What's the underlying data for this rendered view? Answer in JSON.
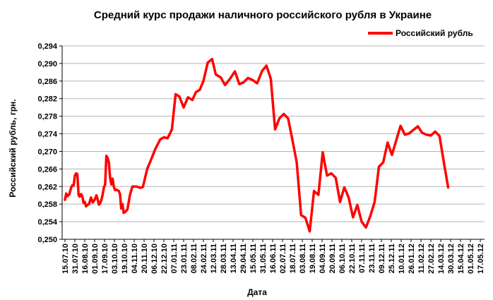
{
  "chart_data": {
    "type": "line",
    "title": "Средний курс продажи наличного российского рубля в Украине",
    "xlabel": "Дата",
    "ylabel": "Российский рубль, грн.",
    "ylim": [
      0.25,
      0.294
    ],
    "yticks": [
      "0,250",
      "0,254",
      "0,258",
      "0,262",
      "0,266",
      "0,270",
      "0,274",
      "0,278",
      "0,282",
      "0,286",
      "0,290",
      "0,294"
    ],
    "grid": "horizontal",
    "legend": "top-right",
    "x_tick_labels": [
      "15.07.10",
      "31.07.10",
      "16.08.10",
      "01.09.10",
      "17.09.10",
      "03.10.10",
      "19.10.10",
      "04.11.10",
      "20.11.10",
      "06.12.10",
      "22.12.10",
      "07.01.11",
      "23.01.11",
      "08.02.11",
      "24.02.11",
      "12.03.11",
      "28.03.11",
      "13.04.11",
      "29.04.11",
      "15.05.11",
      "31.05.11",
      "16.06.11",
      "02.07.11",
      "18.07.11",
      "03.08.11",
      "19.08.11",
      "04.09.11",
      "20.09.11",
      "06.10.11",
      "22.10.11",
      "07.11.11",
      "23.11.11",
      "09.12.11",
      "25.12.11",
      "10.01.12",
      "26.01.12",
      "11.02.12",
      "27.02.12",
      "14.03.12",
      "30.03.12",
      "15.04.12",
      "01.05.12",
      "17.05.12"
    ],
    "colors": {
      "series": "#ff0000",
      "grid": "#b3b3b3",
      "axis": "#000000"
    },
    "series": [
      {
        "name": "Российский рубль",
        "points": [
          [
            "15.07.10",
            0.259
          ],
          [
            "17.07.10",
            0.2604
          ],
          [
            "19.07.10",
            0.2598
          ],
          [
            "22.07.10",
            0.2602
          ],
          [
            "25.07.10",
            0.2618
          ],
          [
            "27.07.10",
            0.2623
          ],
          [
            "29.07.10",
            0.2622
          ],
          [
            "31.07.10",
            0.2645
          ],
          [
            "02.08.10",
            0.265
          ],
          [
            "04.08.10",
            0.2648
          ],
          [
            "06.08.10",
            0.26
          ],
          [
            "08.08.10",
            0.2597
          ],
          [
            "10.08.10",
            0.2603
          ],
          [
            "12.08.10",
            0.2598
          ],
          [
            "14.08.10",
            0.2583
          ],
          [
            "16.08.10",
            0.2585
          ],
          [
            "18.08.10",
            0.2575
          ],
          [
            "20.08.10",
            0.2578
          ],
          [
            "23.08.10",
            0.258
          ],
          [
            "26.08.10",
            0.2595
          ],
          [
            "29.08.10",
            0.2584
          ],
          [
            "01.09.10",
            0.259
          ],
          [
            "04.09.10",
            0.26
          ],
          [
            "06.09.10",
            0.259
          ],
          [
            "08.09.10",
            0.2579
          ],
          [
            "10.09.10",
            0.2582
          ],
          [
            "12.09.10",
            0.259
          ],
          [
            "14.09.10",
            0.2602
          ],
          [
            "16.09.10",
            0.2618
          ],
          [
            "18.09.10",
            0.2625
          ],
          [
            "20.09.10",
            0.269
          ],
          [
            "22.09.10",
            0.2685
          ],
          [
            "24.09.10",
            0.2675
          ],
          [
            "26.09.10",
            0.264
          ],
          [
            "28.09.10",
            0.2625
          ],
          [
            "30.09.10",
            0.2638
          ],
          [
            "02.10.10",
            0.262
          ],
          [
            "04.10.10",
            0.2612
          ],
          [
            "06.10.10",
            0.2613
          ],
          [
            "10.10.10",
            0.261
          ],
          [
            "12.10.10",
            0.2603
          ],
          [
            "14.10.10",
            0.257
          ],
          [
            "16.10.10",
            0.258
          ],
          [
            "18.10.10",
            0.256
          ],
          [
            "21.10.10",
            0.2563
          ],
          [
            "24.10.10",
            0.2568
          ],
          [
            "28.10.10",
            0.26
          ],
          [
            "01.11.10",
            0.262
          ],
          [
            "08.11.10",
            0.262
          ],
          [
            "14.11.10",
            0.2617
          ],
          [
            "18.11.10",
            0.2619
          ],
          [
            "25.11.10",
            0.266
          ],
          [
            "01.12.10",
            0.268
          ],
          [
            "08.12.10",
            0.2705
          ],
          [
            "16.12.10",
            0.2727
          ],
          [
            "22.12.10",
            0.2732
          ],
          [
            "28.12.10",
            0.273
          ],
          [
            "04.01.11",
            0.275
          ],
          [
            "10.01.11",
            0.283
          ],
          [
            "16.01.11",
            0.2825
          ],
          [
            "23.01.11",
            0.28
          ],
          [
            "30.01.11",
            0.2823
          ],
          [
            "06.02.11",
            0.2817
          ],
          [
            "12.02.11",
            0.2835
          ],
          [
            "18.02.11",
            0.284
          ],
          [
            "24.02.11",
            0.286
          ],
          [
            "03.03.11",
            0.2902
          ],
          [
            "10.03.11",
            0.291
          ],
          [
            "16.03.11",
            0.2875
          ],
          [
            "24.03.11",
            0.2868
          ],
          [
            "31.03.11",
            0.2851
          ],
          [
            "08.04.11",
            0.2865
          ],
          [
            "16.04.11",
            0.2882
          ],
          [
            "23.04.11",
            0.2853
          ],
          [
            "30.04.11",
            0.2857
          ],
          [
            "07.05.11",
            0.2867
          ],
          [
            "15.05.11",
            0.2862
          ],
          [
            "22.05.11",
            0.2855
          ],
          [
            "30.05.11",
            0.2883
          ],
          [
            "06.06.11",
            0.2895
          ],
          [
            "13.06.11",
            0.2865
          ],
          [
            "20.06.11",
            0.275
          ],
          [
            "27.06.11",
            0.2775
          ],
          [
            "04.07.11",
            0.2785
          ],
          [
            "11.07.11",
            0.2775
          ],
          [
            "18.07.11",
            0.2726
          ],
          [
            "25.07.11",
            0.2675
          ],
          [
            "01.08.11",
            0.2555
          ],
          [
            "08.08.11",
            0.2549
          ],
          [
            "15.08.11",
            0.2518
          ],
          [
            "22.08.11",
            0.261
          ],
          [
            "29.08.11",
            0.2601
          ],
          [
            "05.09.11",
            0.2698
          ],
          [
            "12.09.11",
            0.2645
          ],
          [
            "19.09.11",
            0.265
          ],
          [
            "26.09.11",
            0.264
          ],
          [
            "03.10.11",
            0.2585
          ],
          [
            "10.10.11",
            0.2618
          ],
          [
            "17.10.11",
            0.2595
          ],
          [
            "24.10.11",
            0.255
          ],
          [
            "31.10.11",
            0.2578
          ],
          [
            "07.11.11",
            0.254
          ],
          [
            "14.11.11",
            0.2527
          ],
          [
            "21.11.11",
            0.2553
          ],
          [
            "28.11.11",
            0.2585
          ],
          [
            "05.12.11",
            0.2665
          ],
          [
            "12.12.11",
            0.2675
          ],
          [
            "19.12.11",
            0.272
          ],
          [
            "26.12.11",
            0.2692
          ],
          [
            "02.01.12",
            0.2725
          ],
          [
            "09.01.12",
            0.2758
          ],
          [
            "16.01.12",
            0.2738
          ],
          [
            "23.01.12",
            0.2741
          ],
          [
            "30.01.12",
            0.2749
          ],
          [
            "06.02.12",
            0.2757
          ],
          [
            "13.02.12",
            0.2742
          ],
          [
            "20.02.12",
            0.2738
          ],
          [
            "27.02.12",
            0.2736
          ],
          [
            "05.03.12",
            0.2745
          ],
          [
            "12.03.12",
            0.2735
          ],
          [
            "19.03.12",
            0.2675
          ],
          [
            "26.03.12",
            0.2618
          ]
        ]
      }
    ]
  }
}
